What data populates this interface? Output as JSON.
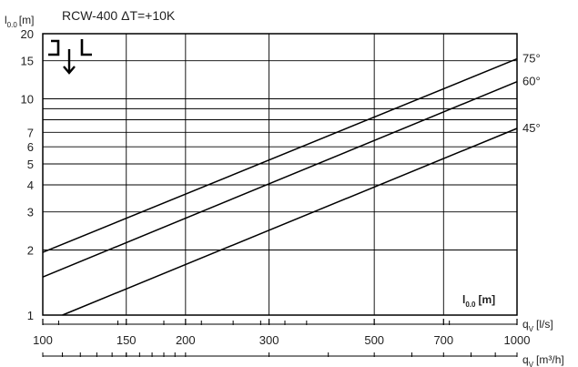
{
  "chart_data": {
    "type": "line",
    "title": "RCW-400 ΔT=+10K",
    "ylabel": {
      "main": "l",
      "sub": "0.0",
      "unit": "[m]"
    },
    "inplot_label": {
      "main": "l",
      "sub": "0.0",
      "unit": "[m]"
    },
    "x_primary_label": {
      "main": "q",
      "sub": "V",
      "unit": "[l/s]"
    },
    "x_secondary_label": {
      "main": "q",
      "sub": "V",
      "unit": "[m³/h]"
    },
    "x_scale": "log",
    "y_scale": "log",
    "xlim": [
      100,
      1000
    ],
    "ylim": [
      1,
      20
    ],
    "x_ticks": [
      100,
      150,
      200,
      300,
      500,
      700,
      1000
    ],
    "x_grid": [
      100,
      150,
      200,
      300,
      500,
      700,
      1000
    ],
    "y_ticks": [
      1,
      2,
      3,
      4,
      5,
      6,
      7,
      10,
      15,
      20
    ],
    "y_grid": [
      1,
      2,
      3,
      4,
      5,
      6,
      7,
      8,
      9,
      10,
      15,
      20
    ],
    "series": [
      {
        "name": "75°",
        "x": [
          100,
          1000
        ],
        "y": [
          1.95,
          15.3
        ]
      },
      {
        "name": "60°",
        "x": [
          100,
          1000
        ],
        "y": [
          1.5,
          12.0
        ]
      },
      {
        "name": "45°",
        "x": [
          110,
          1000
        ],
        "y": [
          1.0,
          7.3
        ]
      }
    ],
    "grid": true,
    "legend": "none"
  }
}
